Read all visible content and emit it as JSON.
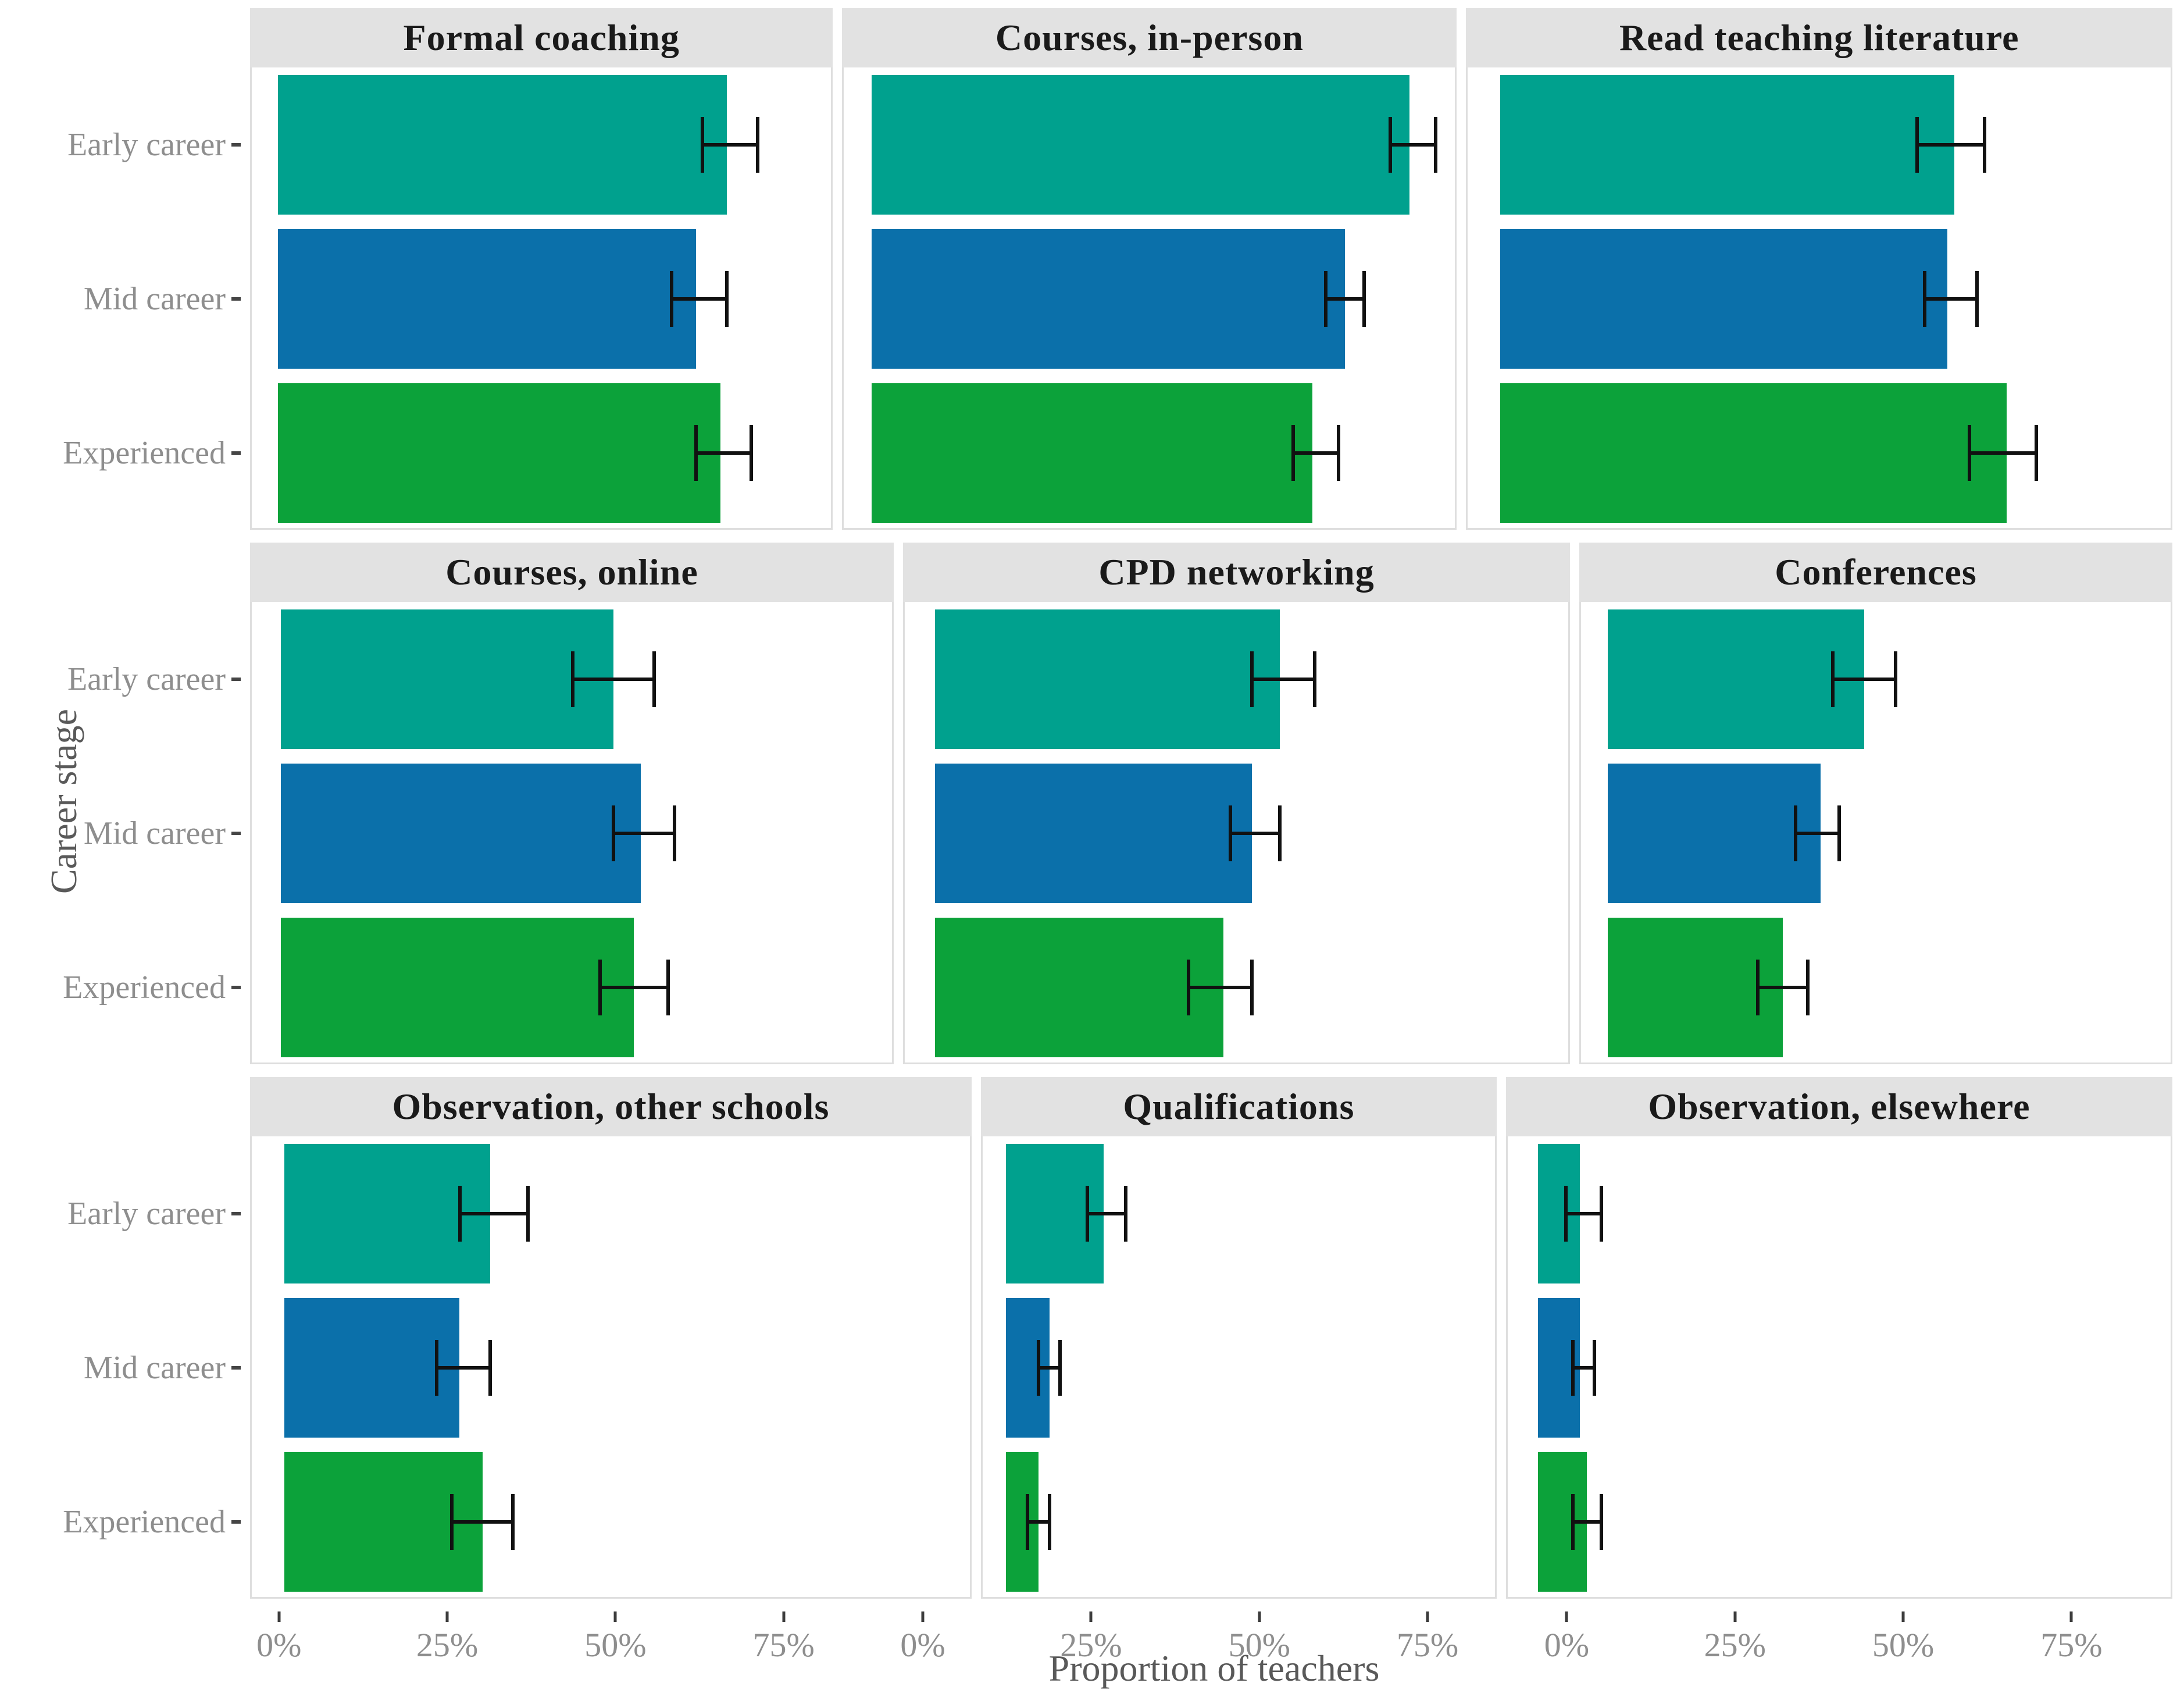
{
  "chart_data": {
    "type": "bar",
    "orientation": "horizontal",
    "xlabel": "Proportion of teachers",
    "ylabel": "Career stage",
    "categories": [
      "Early career",
      "Mid career",
      "Experienced"
    ],
    "x_range": [
      -4.3,
      90
    ],
    "x_ticks": [
      {
        "value": 0,
        "label": "0%"
      },
      {
        "value": 25,
        "label": "25%"
      },
      {
        "value": 50,
        "label": "50%"
      },
      {
        "value": 75,
        "label": "75%"
      }
    ],
    "grid": "off",
    "legend": "none",
    "error_bars": "95% interval, black whiskers",
    "facets": [
      {
        "title": "Formal coaching",
        "bars": [
          {
            "stage": "Early career",
            "value": 73,
            "ci_low": 69,
            "ci_high": 78
          },
          {
            "stage": "Mid career",
            "value": 68,
            "ci_low": 64,
            "ci_high": 73
          },
          {
            "stage": "Experienced",
            "value": 72,
            "ci_low": 68,
            "ci_high": 77
          }
        ]
      },
      {
        "title": "Courses, in-person",
        "bars": [
          {
            "stage": "Early career",
            "value": 83,
            "ci_low": 80,
            "ci_high": 87
          },
          {
            "stage": "Mid career",
            "value": 73,
            "ci_low": 70,
            "ci_high": 76
          },
          {
            "stage": "Experienced",
            "value": 68,
            "ci_low": 65,
            "ci_high": 72
          }
        ]
      },
      {
        "title": "Read teaching literature",
        "bars": [
          {
            "stage": "Early career",
            "value": 61,
            "ci_low": 56,
            "ci_high": 65
          },
          {
            "stage": "Mid career",
            "value": 60,
            "ci_low": 57,
            "ci_high": 64
          },
          {
            "stage": "Experienced",
            "value": 68,
            "ci_low": 63,
            "ci_high": 72
          }
        ]
      },
      {
        "title": "Courses, online",
        "bars": [
          {
            "stage": "Early career",
            "value": 49,
            "ci_low": 43,
            "ci_high": 55
          },
          {
            "stage": "Mid career",
            "value": 53,
            "ci_low": 49,
            "ci_high": 58
          },
          {
            "stage": "Experienced",
            "value": 52,
            "ci_low": 47,
            "ci_high": 57
          }
        ]
      },
      {
        "title": "CPD networking",
        "bars": [
          {
            "stage": "Early career",
            "value": 49,
            "ci_low": 45,
            "ci_high": 54
          },
          {
            "stage": "Mid career",
            "value": 45,
            "ci_low": 42,
            "ci_high": 49
          },
          {
            "stage": "Experienced",
            "value": 41,
            "ci_low": 36,
            "ci_high": 45
          }
        ]
      },
      {
        "title": "Conferences",
        "bars": [
          {
            "stage": "Early career",
            "value": 41,
            "ci_low": 36,
            "ci_high": 46
          },
          {
            "stage": "Mid career",
            "value": 34,
            "ci_low": 30,
            "ci_high": 37
          },
          {
            "stage": "Experienced",
            "value": 28,
            "ci_low": 24,
            "ci_high": 32
          }
        ]
      },
      {
        "title": "Observation, other schools",
        "bars": [
          {
            "stage": "Early career",
            "value": 27,
            "ci_low": 23,
            "ci_high": 32
          },
          {
            "stage": "Mid career",
            "value": 23,
            "ci_low": 20,
            "ci_high": 27
          },
          {
            "stage": "Experienced",
            "value": 26,
            "ci_low": 22,
            "ci_high": 30
          }
        ]
      },
      {
        "title": "Qualifications",
        "bars": [
          {
            "stage": "Early career",
            "value": 18,
            "ci_low": 15,
            "ci_high": 22
          },
          {
            "stage": "Mid career",
            "value": 8,
            "ci_low": 6,
            "ci_high": 10
          },
          {
            "stage": "Experienced",
            "value": 6,
            "ci_low": 4,
            "ci_high": 8
          }
        ]
      },
      {
        "title": "Observation, elsewhere",
        "bars": [
          {
            "stage": "Early career",
            "value": 6,
            "ci_low": 4,
            "ci_high": 9
          },
          {
            "stage": "Mid career",
            "value": 6,
            "ci_low": 5,
            "ci_high": 8
          },
          {
            "stage": "Experienced",
            "value": 7,
            "ci_low": 5,
            "ci_high": 9
          }
        ]
      }
    ],
    "series_colors": {
      "Early career": "#00A18E",
      "Mid career": "#0B70AA",
      "Experienced": "#0CA23A"
    },
    "style_colors": {
      "strip_background": "#E2E2E2",
      "panel_border": "#DEDEDE",
      "strip_text": "#1A1A1A",
      "tick_label": "#8E8E8E",
      "axis_title": "#595959",
      "error_bar": "#111111"
    }
  }
}
